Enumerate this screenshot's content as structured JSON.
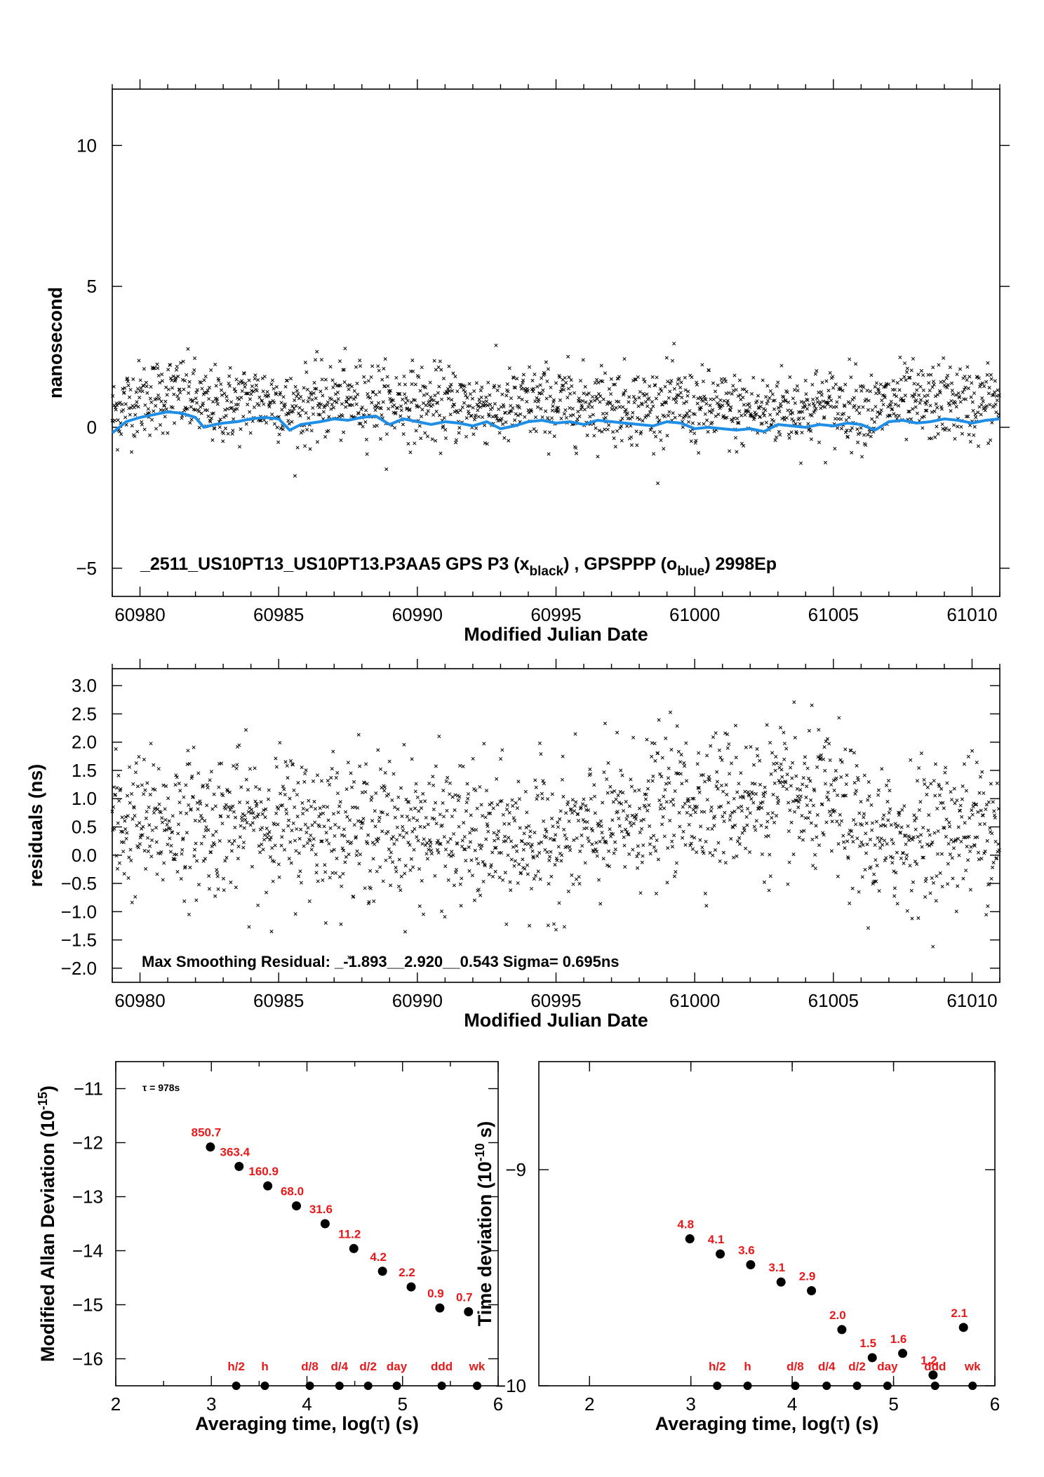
{
  "colors": {
    "scatter": "#000000",
    "smooth": "#1f8ee6",
    "labels": "#e8191b",
    "points": "#000000"
  },
  "chart_data": [
    {
      "id": "timeseries",
      "type": "scatter",
      "xlabel": "Modified Julian Date",
      "ylabel": "nanosecond",
      "xlim": [
        60979,
        61011
      ],
      "ylim": [
        -6,
        12
      ],
      "xticks": [
        60980,
        60985,
        60990,
        60995,
        61000,
        61005,
        61010
      ],
      "yticks": [
        -5,
        0,
        5,
        10
      ],
      "ytick_labels": [
        "−5",
        "0",
        "5",
        "10"
      ],
      "annotation": {
        "prefix": "_2511_US10PT13_US10PT13.P3AA5     GPS P3 (x",
        "sub1": "black",
        "mid": ") ,  GPSPPP (o",
        "sub2": "blue",
        "suffix": ")  2998Ep"
      },
      "series": [
        {
          "marker": "x",
          "count": 2998,
          "mean_ns": 0.8,
          "scatter_sigma_ns": 0.7
        },
        {
          "marker": "line",
          "x": [
            60979,
            60979.5,
            60980,
            60980.5,
            60981,
            60981.5,
            60982,
            60982.3,
            60982.7,
            60983,
            60983.5,
            60984,
            60984.5,
            60985,
            60985.4,
            60985.8,
            60986.5,
            60987,
            60987.5,
            60988,
            60988.5,
            60989,
            60989.5,
            60990,
            60990.5,
            60991,
            60991.5,
            60992,
            60992.5,
            60993,
            60993.5,
            60994,
            60994.5,
            60995,
            60995.5,
            60996,
            60996.5,
            60997,
            60997.5,
            60998,
            60998.5,
            60999,
            60999.5,
            61000,
            61000.5,
            61001,
            61001.5,
            61002,
            61002.5,
            61003,
            61003.5,
            61004,
            61004.5,
            61005,
            61005.5,
            61006,
            61006.5,
            61007,
            61007.5,
            61008,
            61008.5,
            61009,
            61009.5,
            61010,
            61010.5,
            61011
          ],
          "y": [
            -0.2,
            0.2,
            0.35,
            0.45,
            0.55,
            0.5,
            0.35,
            0.0,
            0.1,
            0.15,
            0.2,
            0.3,
            0.35,
            0.3,
            -0.1,
            0.1,
            0.2,
            0.3,
            0.25,
            0.35,
            0.4,
            0.1,
            0.3,
            0.2,
            0.1,
            0.2,
            0.15,
            0.05,
            0.2,
            -0.05,
            0.05,
            0.2,
            0.25,
            0.15,
            0.2,
            0.1,
            0.25,
            0.2,
            0.15,
            0.1,
            0.05,
            0.2,
            0.15,
            -0.05,
            0.0,
            -0.05,
            -0.1,
            -0.05,
            -0.15,
            0.1,
            0.05,
            0.0,
            0.1,
            0.05,
            0.15,
            0.1,
            -0.1,
            0.2,
            0.25,
            0.15,
            0.2,
            0.3,
            0.25,
            0.15,
            0.25,
            0.3
          ]
        }
      ]
    },
    {
      "id": "residuals",
      "type": "scatter",
      "xlabel": "Modified Julian Date",
      "ylabel": "residuals (ns)",
      "xlim": [
        60979,
        61011
      ],
      "ylim": [
        -2.25,
        3.3
      ],
      "xticks": [
        60980,
        60985,
        60990,
        60995,
        61000,
        61005,
        61010
      ],
      "yticks": [
        -2.0,
        -1.5,
        -1.0,
        -0.5,
        0.0,
        0.5,
        1.0,
        1.5,
        2.0,
        2.5,
        3.0
      ],
      "ytick_labels": [
        "−2.0",
        "−1.5",
        "−1.0",
        "−0.5",
        "0.0",
        "0.5",
        "1.0",
        "1.5",
        "2.0",
        "2.5",
        "3.0"
      ],
      "annotation": "Max Smoothing Residual: _-1.893__2.920__0.543  Sigma= 0.695ns",
      "series": [
        {
          "marker": "x",
          "count": 2998,
          "min": -1.893,
          "max": 2.92,
          "sigma": 0.695
        }
      ]
    },
    {
      "id": "mdev",
      "type": "scatter",
      "xlabel_main": "Averaging time, log(",
      "xlabel_tau": "τ",
      "xlabel_end": ") (s)",
      "ylabel_main": "Modified Allan Deviation (10",
      "ylabel_exp": "-15",
      "ylabel_end": ")",
      "xlim": [
        2,
        6
      ],
      "ylim": [
        -16.5,
        -10.5
      ],
      "xticks": [
        2,
        3,
        4,
        5,
        6
      ],
      "xtick_labels": [
        "2",
        "3",
        "4",
        "5",
        "6"
      ],
      "yticks": [
        -16,
        -15,
        -14,
        -13,
        -12,
        -11
      ],
      "ytick_labels": [
        "−16",
        "−15",
        "−14",
        "−13",
        "−12",
        "−11"
      ],
      "tau_note": "τ = 978s",
      "points": {
        "x": [
          2.99,
          3.29,
          3.59,
          3.89,
          4.19,
          4.49,
          4.79,
          5.09,
          5.39,
          5.69
        ],
        "y": [
          -12.08,
          -12.44,
          -12.8,
          -13.17,
          -13.5,
          -13.96,
          -14.38,
          -14.67,
          -15.06,
          -15.13
        ],
        "labels": [
          "850.7",
          "363.4",
          "160.9",
          "68.0",
          "31.6",
          "11.2",
          "4.2",
          "2.2",
          "0.9",
          "0.7"
        ]
      },
      "markers": {
        "x": [
          3.26,
          3.56,
          4.03,
          4.34,
          4.64,
          4.94,
          5.41,
          5.78
        ],
        "labels": [
          "h/2",
          "h",
          "d/8",
          "d/4",
          "d/2",
          "day",
          "ddd",
          "wk"
        ]
      }
    },
    {
      "id": "tdev",
      "type": "scatter",
      "xlabel_main": "Averaging time, log(",
      "xlabel_tau": "τ",
      "xlabel_end": ") (s)",
      "ylabel_main": "Time deviation (10",
      "ylabel_exp": "-10",
      "ylabel_end": " s)",
      "xlim": [
        1.5,
        6
      ],
      "ylim": [
        -10.0,
        -8.5
      ],
      "xticks": [
        2,
        3,
        4,
        5,
        6
      ],
      "xtick_labels": [
        "2",
        "3",
        "4",
        "5",
        "6"
      ],
      "yticks": [
        -10,
        -9
      ],
      "ytick_labels": [
        "−10",
        "−9"
      ],
      "points": {
        "x": [
          2.99,
          3.29,
          3.59,
          3.89,
          4.19,
          4.49,
          4.79,
          5.09,
          5.39,
          5.69
        ],
        "y": [
          -9.32,
          -9.39,
          -9.44,
          -9.52,
          -9.56,
          -9.74,
          -9.87,
          -9.85,
          -9.95,
          -9.73
        ],
        "labels": [
          "4.8",
          "4.1",
          "3.6",
          "3.1",
          "2.9",
          "2.0",
          "1.5",
          "1.6",
          "1.2",
          "2.1"
        ]
      },
      "markers": {
        "x": [
          3.26,
          3.56,
          4.03,
          4.34,
          4.64,
          4.94,
          5.41,
          5.78
        ],
        "labels": [
          "h/2",
          "h",
          "d/8",
          "d/4",
          "d/2",
          "day",
          "ddd",
          "wk"
        ]
      }
    }
  ]
}
